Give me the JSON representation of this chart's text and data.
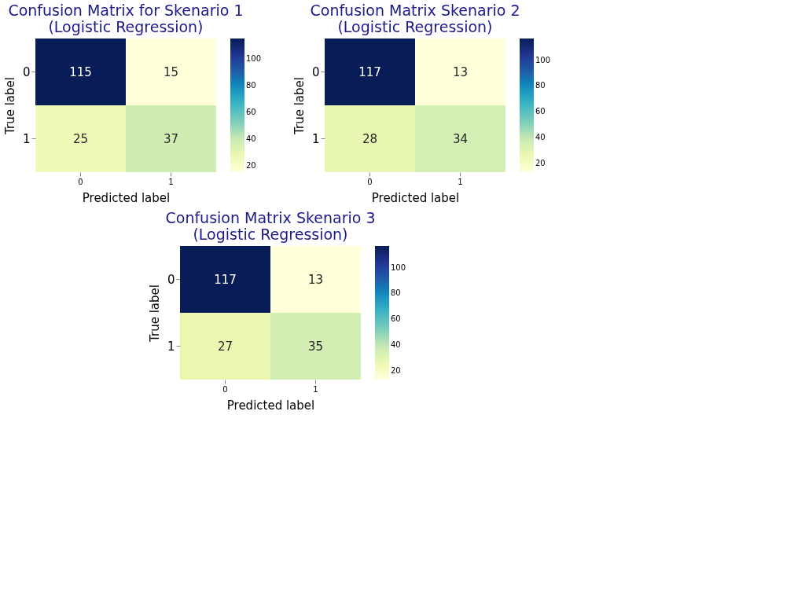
{
  "chart_data": [
    {
      "type": "heatmap",
      "title": "Confusion Matrix for Skenario 1",
      "subtitle": "(Logistic Regression)",
      "xlabel": "Predicted label",
      "ylabel": "True label",
      "categories": [
        "0",
        "1"
      ],
      "y_categories": [
        "0",
        "1"
      ],
      "cells": [
        [
          115,
          15
        ],
        [
          25,
          37
        ]
      ],
      "data_labels": true,
      "clim": [
        15,
        115
      ],
      "cticks": [
        20,
        40,
        60,
        80,
        100
      ]
    },
    {
      "type": "heatmap",
      "title": "Confusion Matrix Skenario 2",
      "subtitle": "(Logistic Regression)",
      "xlabel": "Predicted label",
      "ylabel": "True label",
      "categories": [
        "0",
        "1"
      ],
      "y_categories": [
        "0",
        "1"
      ],
      "cells": [
        [
          117,
          13
        ],
        [
          28,
          34
        ]
      ],
      "data_labels": true,
      "clim": [
        13,
        117
      ],
      "cticks": [
        20,
        40,
        60,
        80,
        100
      ]
    },
    {
      "type": "heatmap",
      "title": "Confusion Matrix Skenario 3",
      "subtitle": "(Logistic Regression)",
      "xlabel": "Predicted label",
      "ylabel": "True label",
      "categories": [
        "0",
        "1"
      ],
      "y_categories": [
        "0",
        "1"
      ],
      "cells": [
        [
          117,
          13
        ],
        [
          27,
          35
        ]
      ],
      "data_labels": true,
      "clim": [
        13,
        117
      ],
      "cticks": [
        20,
        40,
        60,
        80,
        100
      ]
    }
  ]
}
